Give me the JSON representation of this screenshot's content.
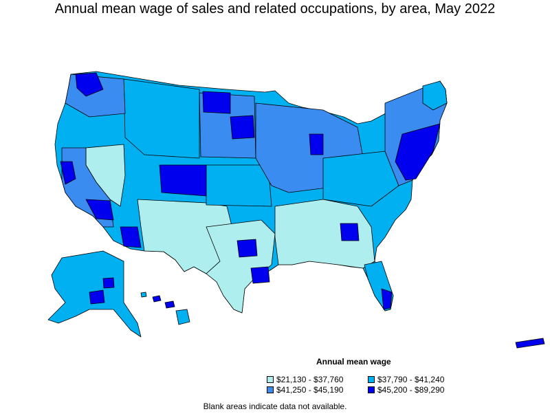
{
  "title": "Annual mean wage of sales and related occupations, by area, May 2022",
  "legend": {
    "title": "Annual mean wage",
    "items": [
      {
        "label": "$21,130 - $37,760",
        "color": "#aeeeee"
      },
      {
        "label": "$37,790 - $41,240",
        "color": "#00b0f0"
      },
      {
        "label": "$41,250 - $45,190",
        "color": "#3a8cf0"
      },
      {
        "label": "$45,200 - $89,290",
        "color": "#0000ee"
      }
    ]
  },
  "note": "Blank areas indicate data not available.",
  "colors": {
    "low": "#aeeeee",
    "mid_low": "#00b0f0",
    "mid_high": "#3a8cf0",
    "high": "#0000ee",
    "border": "#000000"
  }
}
